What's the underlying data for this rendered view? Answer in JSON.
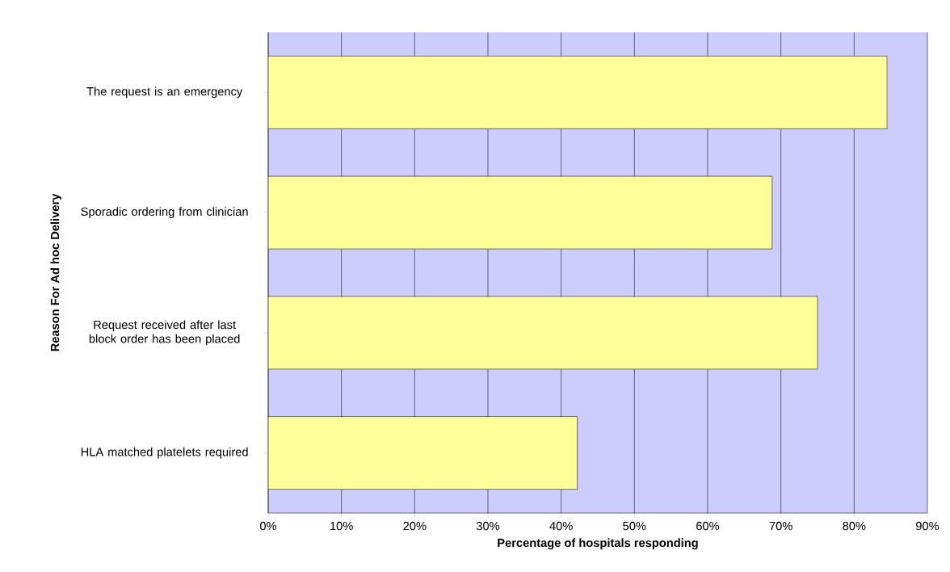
{
  "chart_data": {
    "type": "bar",
    "orientation": "horizontal",
    "xlabel": "Percentage of hospitals responding",
    "ylabel": "Reason For Ad hoc Delivery",
    "categories": [
      "The request is an emergency",
      "Sporadic ordering from clinician",
      "Request received after last block order has been placed",
      "HLA matched platelets required"
    ],
    "values": [
      84.5,
      68.8,
      75.0,
      42.2
    ],
    "color": "#ffff99",
    "xlim": [
      0,
      90
    ],
    "xticks": [
      {
        "value": 0,
        "label": "0%"
      },
      {
        "value": 10,
        "label": "10%"
      },
      {
        "value": 20,
        "label": "20%"
      },
      {
        "value": 30,
        "label": "30%"
      },
      {
        "value": 40,
        "label": "40%"
      },
      {
        "value": 50,
        "label": "50%"
      },
      {
        "value": 60,
        "label": "60%"
      },
      {
        "value": 70,
        "label": "70%"
      },
      {
        "value": 80,
        "label": "80%"
      },
      {
        "value": 90,
        "label": "90%"
      }
    ],
    "grid": "x"
  }
}
